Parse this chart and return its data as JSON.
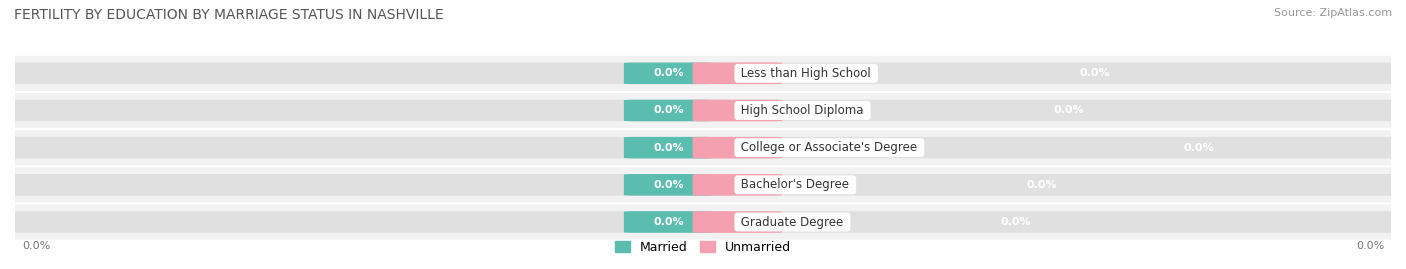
{
  "title": "FERTILITY BY EDUCATION BY MARRIAGE STATUS IN NASHVILLE",
  "source": "Source: ZipAtlas.com",
  "categories": [
    "Less than High School",
    "High School Diploma",
    "College or Associate's Degree",
    "Bachelor's Degree",
    "Graduate Degree"
  ],
  "married_values": [
    0.0,
    0.0,
    0.0,
    0.0,
    0.0
  ],
  "unmarried_values": [
    0.0,
    0.0,
    0.0,
    0.0,
    0.0
  ],
  "married_color": "#5bbcb0",
  "unmarried_color": "#f4a0b0",
  "bar_bg_color": "#e0e0e0",
  "row_bg_color": "#f2f2f2",
  "title_fontsize": 10,
  "source_fontsize": 8,
  "bar_label_fontsize": 8,
  "category_fontsize": 8.5,
  "legend_fontsize": 9,
  "bar_height": 0.55,
  "figsize": [
    14.06,
    2.69
  ],
  "dpi": 100
}
